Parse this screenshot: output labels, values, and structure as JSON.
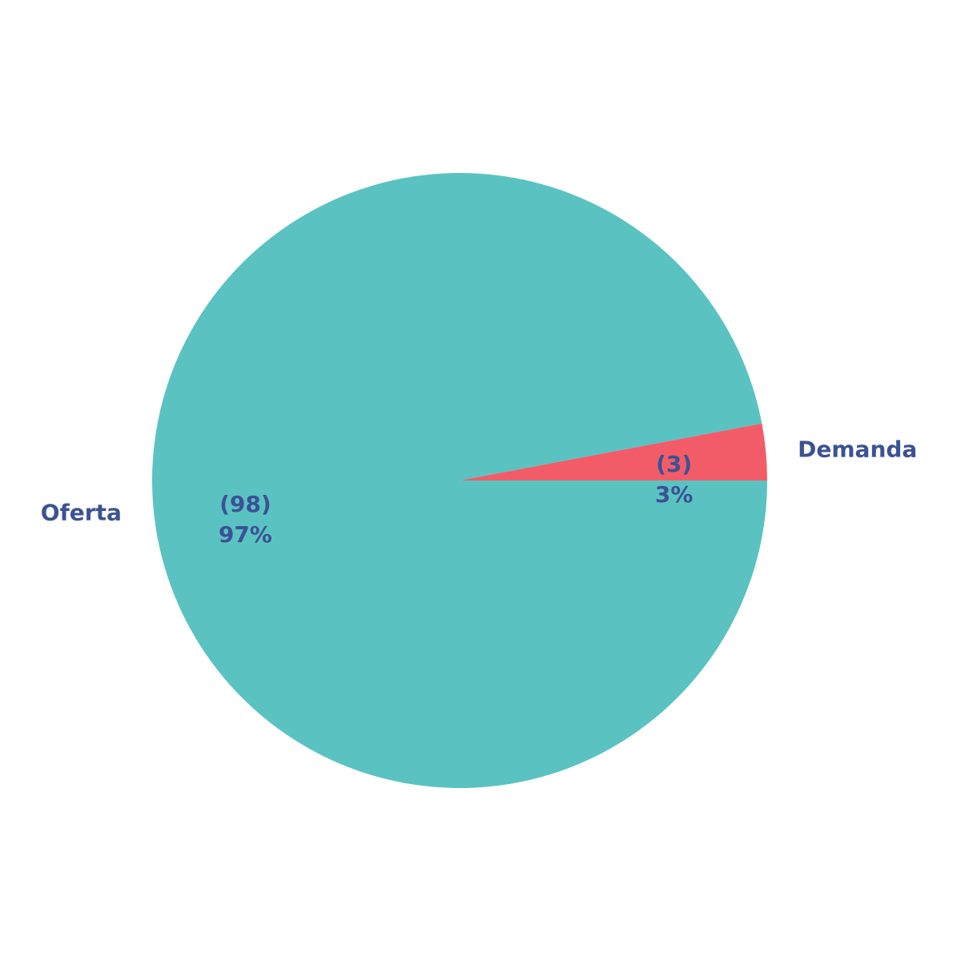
{
  "chart_data": {
    "type": "pie",
    "title": "",
    "slices": [
      {
        "label": "Oferta",
        "value": 98,
        "count_label": "(98)",
        "percent_label": "97%",
        "color": "#5BC2C2"
      },
      {
        "label": "Demanda",
        "value": 3,
        "count_label": "(3)",
        "percent_label": "3%",
        "color": "#F25C69"
      }
    ],
    "label_color": "#3B5294"
  }
}
